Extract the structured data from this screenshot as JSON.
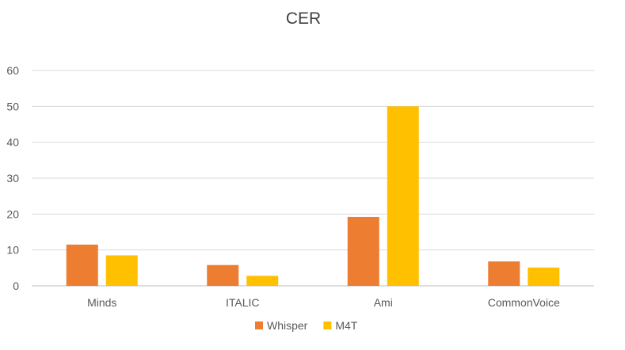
{
  "chart_data": {
    "type": "bar",
    "title": "CER",
    "xlabel": "",
    "ylabel": "",
    "categories": [
      "Minds",
      "ITALIC",
      "Ami",
      "CommonVoice"
    ],
    "series": [
      {
        "name": "Whisper",
        "color": "#ED7D31",
        "values": [
          11.5,
          5.8,
          19.2,
          6.8
        ]
      },
      {
        "name": "M4T",
        "color": "#FFC000",
        "values": [
          8.5,
          2.8,
          50.0,
          5.1
        ]
      }
    ],
    "ylim": [
      0,
      60
    ],
    "yticks": [
      0,
      10,
      20,
      30,
      40,
      50,
      60
    ],
    "grid": true,
    "legend_position": "bottom"
  }
}
